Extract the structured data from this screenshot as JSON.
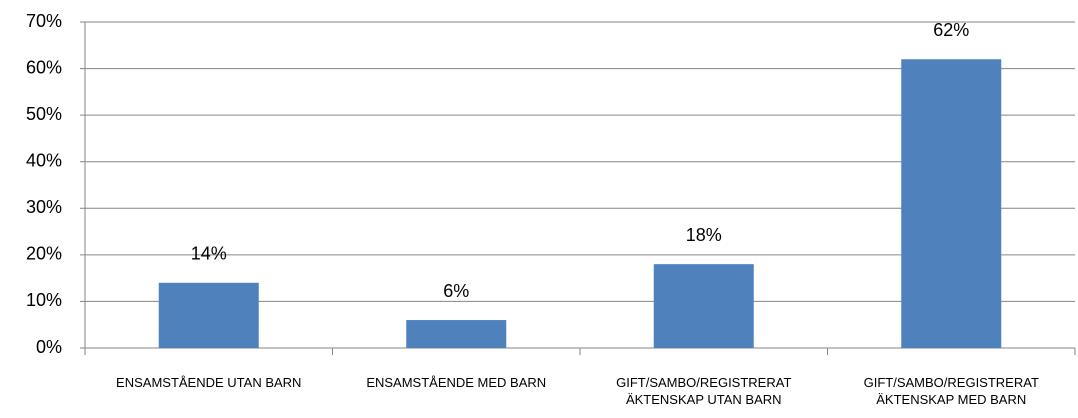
{
  "chart_data": {
    "type": "bar",
    "categories": [
      "ENSAMSTÅENDE UTAN BARN",
      "ENSAMSTÅENDE MED BARN",
      "GIFT/SAMBO/REGISTRERAT ÄKTENSKAP UTAN BARN",
      "GIFT/SAMBO/REGISTRERAT ÄKTENSKAP MED BARN"
    ],
    "values": [
      14,
      6,
      18,
      62
    ],
    "value_labels": [
      "14%",
      "6%",
      "18%",
      "62%"
    ],
    "color": "#4f81bd",
    "ylim": [
      0,
      70
    ],
    "yticks": [
      {
        "value": 0,
        "label": "0%"
      },
      {
        "value": 10,
        "label": "10%"
      },
      {
        "value": 20,
        "label": "20%"
      },
      {
        "value": 30,
        "label": "30%"
      },
      {
        "value": 40,
        "label": "40%"
      },
      {
        "value": 50,
        "label": "50%"
      },
      {
        "value": 60,
        "label": "60%"
      },
      {
        "value": 70,
        "label": "70%"
      }
    ],
    "grid": true
  }
}
